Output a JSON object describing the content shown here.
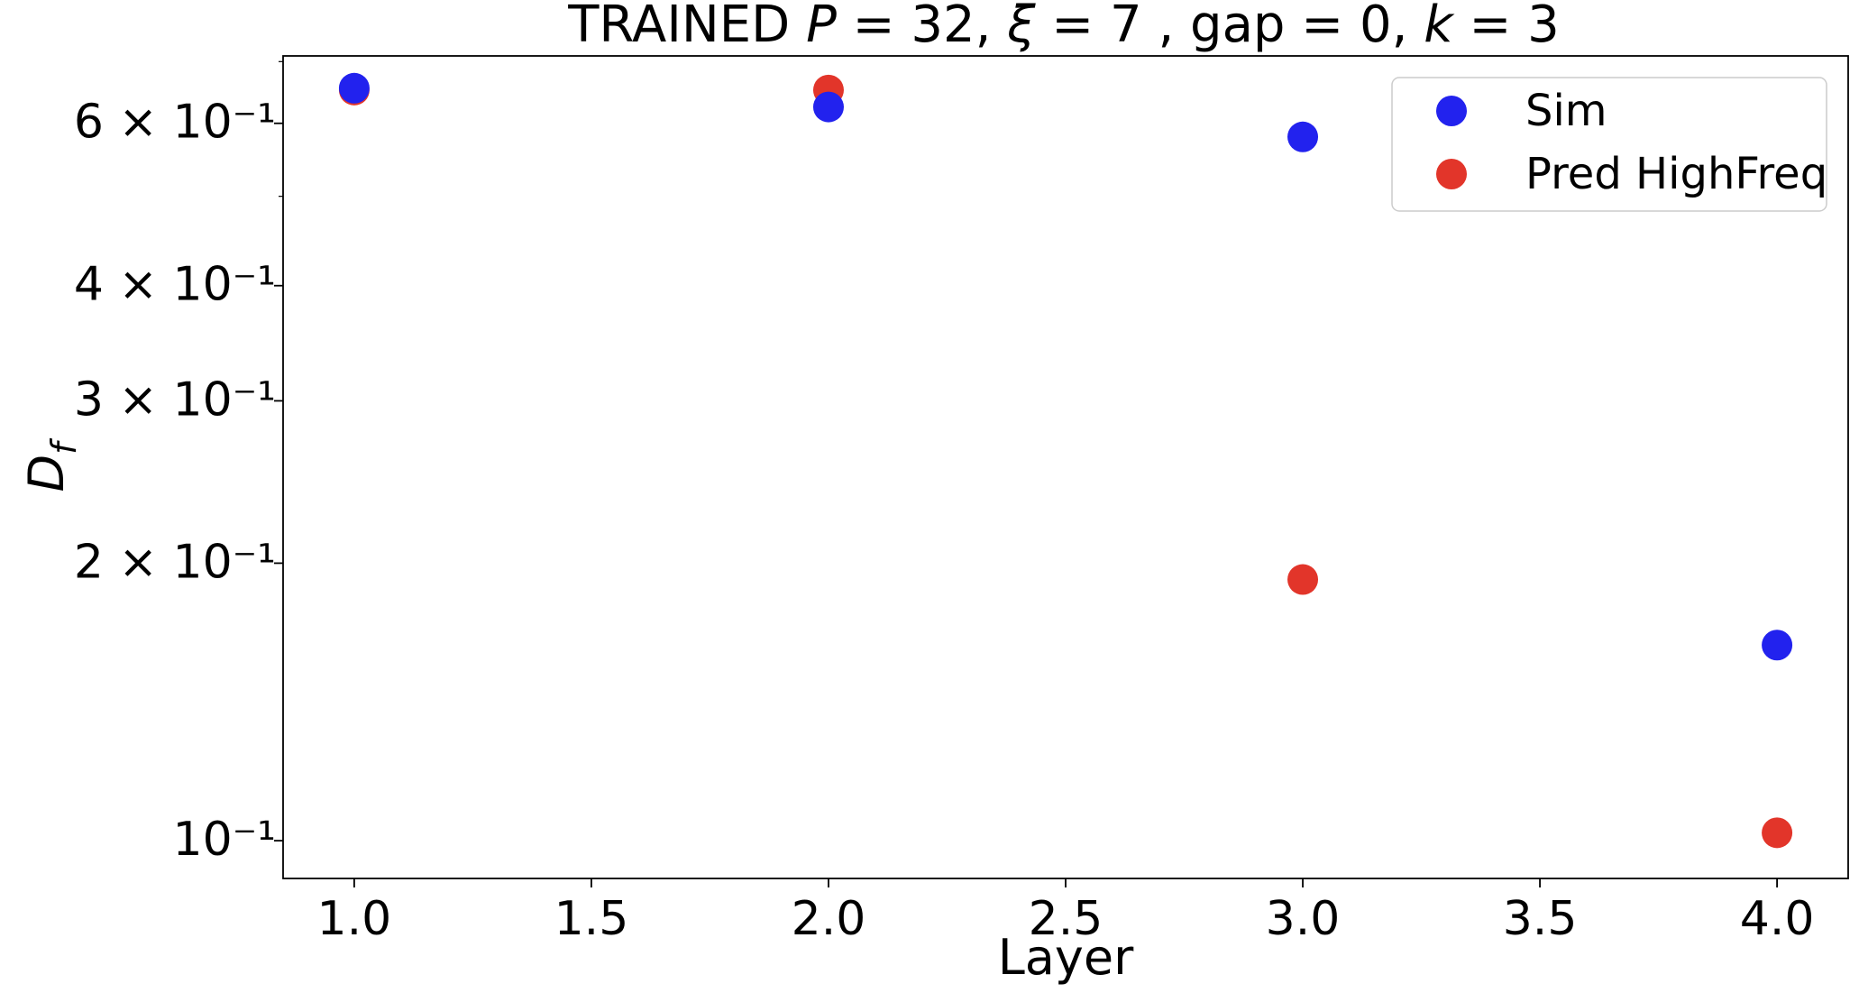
{
  "chart_data": {
    "type": "scatter",
    "title": "TRAINED P = 32, ξ = 7 , gap  = 0, k = 3",
    "xlabel": "Layer",
    "ylabel": "D_f",
    "xlim": [
      0.85,
      4.15
    ],
    "ylim": [
      0.091,
      0.71
    ],
    "yscale": "log",
    "xticks": [
      1.0,
      1.5,
      2.0,
      2.5,
      3.0,
      3.5,
      4.0
    ],
    "xtick_labels": [
      "1.0",
      "1.5",
      "2.0",
      "2.5",
      "3.0",
      "3.5",
      "4.0"
    ],
    "yticks": [
      {
        "value": 0.6,
        "label": "6 × 10⁻¹"
      },
      {
        "value": 0.4,
        "label": "4 × 10⁻¹"
      },
      {
        "value": 0.3,
        "label": "3 × 10⁻¹"
      },
      {
        "value": 0.2,
        "label": "2 × 10⁻¹"
      },
      {
        "value": 0.1,
        "label": "10⁻¹"
      }
    ],
    "grid": false,
    "legend_position": "top-right",
    "series": [
      {
        "name": "Sim",
        "color": "#2222ee",
        "x": [
          1.0,
          2.0,
          3.0,
          4.0
        ],
        "y": [
          0.655,
          0.625,
          0.58,
          0.163
        ]
      },
      {
        "name": "Pred HighFreq",
        "color": "#e2352a",
        "x": [
          1.0,
          2.0,
          3.0,
          4.0
        ],
        "y": [
          0.652,
          0.652,
          0.192,
          0.102
        ]
      }
    ]
  }
}
